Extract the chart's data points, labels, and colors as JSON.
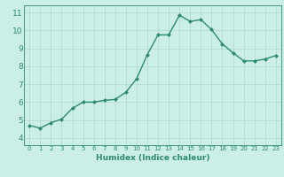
{
  "x": [
    0,
    1,
    2,
    3,
    4,
    5,
    6,
    7,
    8,
    9,
    10,
    11,
    12,
    13,
    14,
    15,
    16,
    17,
    18,
    19,
    20,
    21,
    22,
    23
  ],
  "y": [
    4.7,
    4.55,
    4.85,
    5.05,
    5.65,
    6.0,
    6.0,
    6.1,
    6.15,
    6.55,
    7.3,
    8.65,
    9.75,
    9.75,
    10.85,
    10.5,
    10.6,
    10.05,
    9.25,
    8.75,
    8.3,
    8.3,
    8.4,
    8.6
  ],
  "line_color": "#2e8b72",
  "marker": "D",
  "markersize": 2,
  "linewidth": 1.0,
  "xlabel": "Humidex (Indice chaleur)",
  "xlim": [
    -0.5,
    23.5
  ],
  "ylim": [
    3.6,
    11.4
  ],
  "yticks": [
    4,
    5,
    6,
    7,
    8,
    9,
    10,
    11
  ],
  "xticks": [
    0,
    1,
    2,
    3,
    4,
    5,
    6,
    7,
    8,
    9,
    10,
    11,
    12,
    13,
    14,
    15,
    16,
    17,
    18,
    19,
    20,
    21,
    22,
    23
  ],
  "bg_color": "#cceee8",
  "grid_color": "#aad8d0",
  "tick_color": "#2e8b72",
  "label_color": "#2e8b72",
  "xlabel_fontsize": 6.5,
  "ytick_fontsize": 6.5,
  "xtick_fontsize": 5.0
}
